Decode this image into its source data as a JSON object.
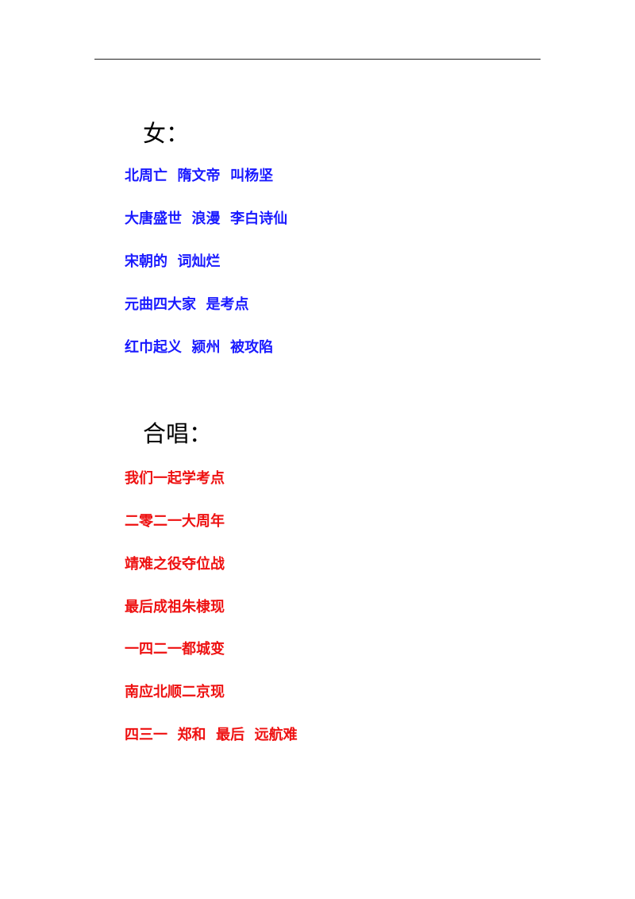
{
  "sections": [
    {
      "heading": "女：",
      "color": "#1a1aff",
      "lines": [
        "北周亡  隋文帝  叫杨坚",
        "大唐盛世  浪漫  李白诗仙",
        "宋朝的  词灿烂",
        "元曲四大家  是考点",
        "红巾起义  颍州  被攻陷"
      ]
    },
    {
      "heading": "合唱：",
      "color": "#ee1111",
      "lines": [
        "我们一起学考点",
        "二零二一大周年",
        "靖难之役夺位战",
        "最后成祖朱棣现",
        "一四二一都城变",
        "南应北顺二京现",
        "四三一  郑和  最后  远航难"
      ]
    }
  ]
}
